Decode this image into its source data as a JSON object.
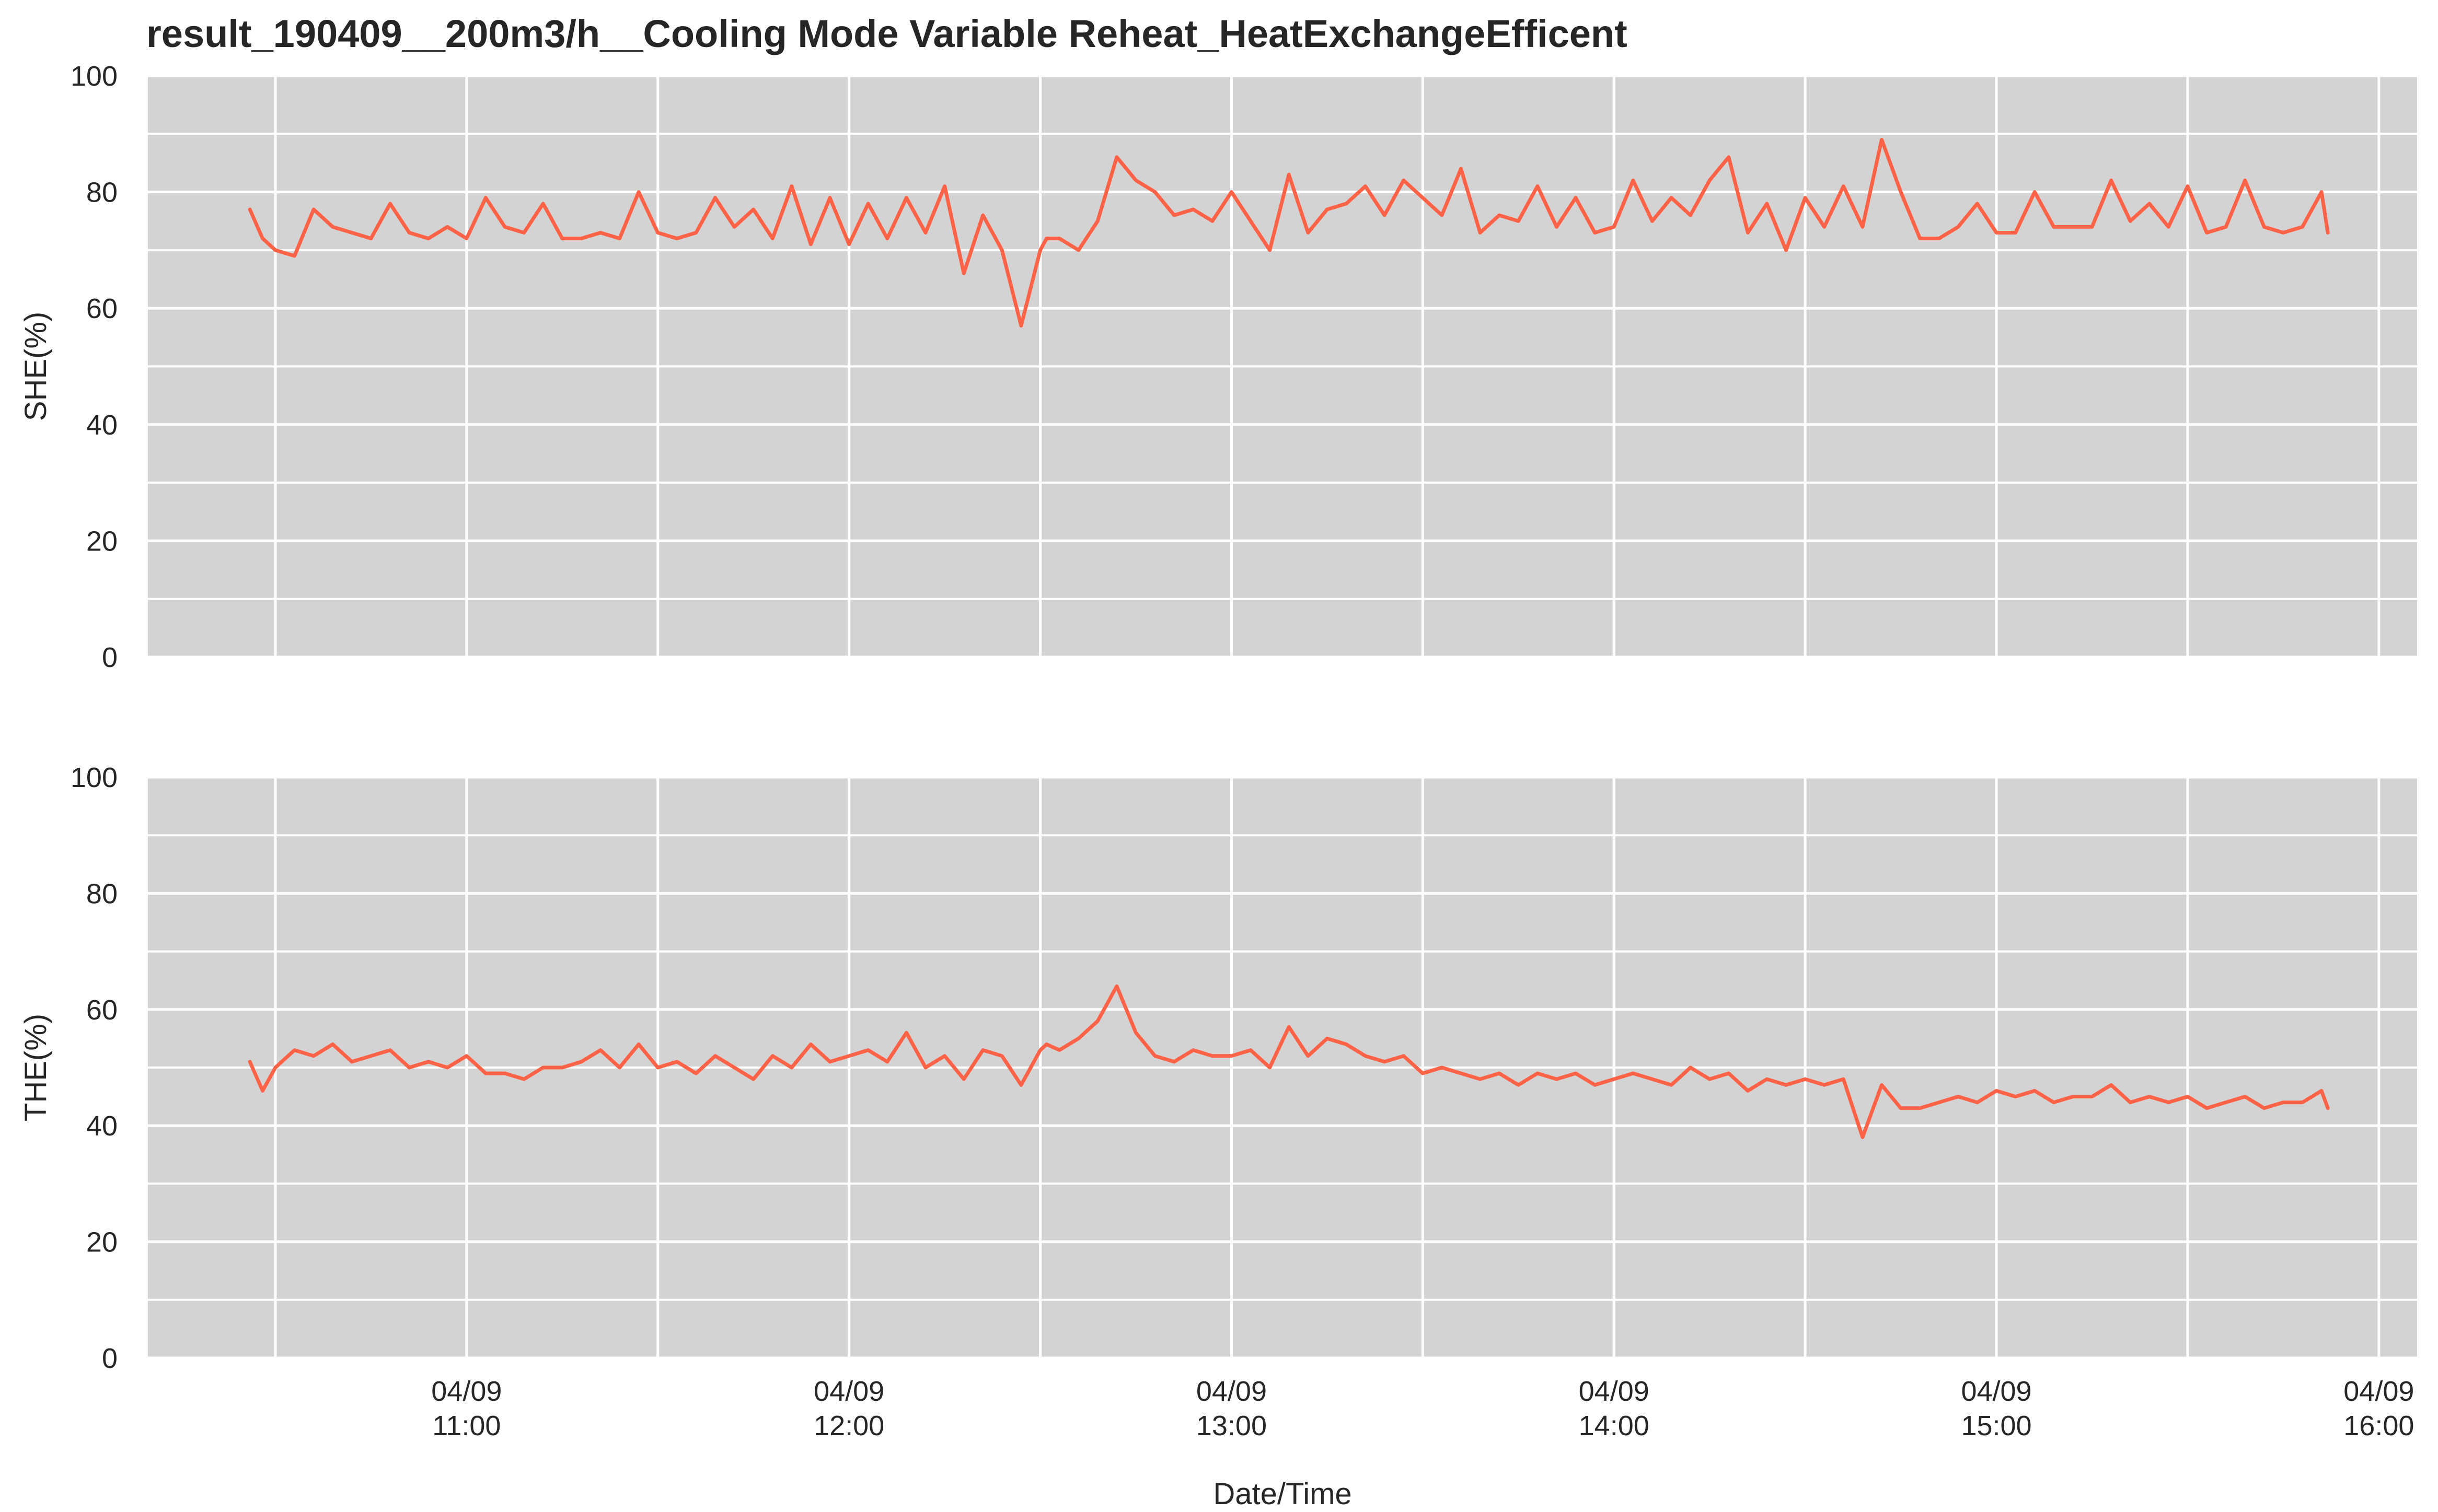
{
  "chart_data": {
    "type": "line",
    "title": "result_190409__200m3/h__Cooling Mode Variable Reheat_HeatExchangeEfficent",
    "xlabel": "Date/Time",
    "xlim": [
      "04/09 10:10",
      "04/09 16:06"
    ],
    "x_ticks": [
      {
        "t": "04/09 11:00",
        "line1": "04/09",
        "line2": "11:00"
      },
      {
        "t": "04/09 12:00",
        "line1": "04/09",
        "line2": "12:00"
      },
      {
        "t": "04/09 13:00",
        "line1": "04/09",
        "line2": "13:00"
      },
      {
        "t": "04/09 14:00",
        "line1": "04/09",
        "line2": "14:00"
      },
      {
        "t": "04/09 15:00",
        "line1": "04/09",
        "line2": "15:00"
      },
      {
        "t": "04/09 16:00",
        "line1": "04/09",
        "line2": "16:00"
      }
    ],
    "x_minor_ticks": [
      "04/09 10:30",
      "04/09 11:30",
      "04/09 12:30",
      "04/09 13:30",
      "04/09 14:30",
      "04/09 15:30"
    ],
    "grid": true,
    "line_color": "#ff6347",
    "background": "#d3d3d3",
    "panels": [
      {
        "ylabel": "SHE(%)",
        "ylim": [
          0,
          100
        ],
        "y_ticks": [
          0,
          20,
          40,
          60,
          80,
          100
        ],
        "series": [
          {
            "x": [
              "04/09 10:26",
              "04/09 10:28",
              "04/09 10:30",
              "04/09 10:33",
              "04/09 10:36",
              "04/09 10:39",
              "04/09 10:42",
              "04/09 10:45",
              "04/09 10:48",
              "04/09 10:51",
              "04/09 10:54",
              "04/09 10:57",
              "04/09 11:00",
              "04/09 11:03",
              "04/09 11:06",
              "04/09 11:09",
              "04/09 11:12",
              "04/09 11:15",
              "04/09 11:18",
              "04/09 11:21",
              "04/09 11:24",
              "04/09 11:27",
              "04/09 11:30",
              "04/09 11:33",
              "04/09 11:36",
              "04/09 11:39",
              "04/09 11:42",
              "04/09 11:45",
              "04/09 11:48",
              "04/09 11:51",
              "04/09 11:54",
              "04/09 11:57",
              "04/09 12:00",
              "04/09 12:03",
              "04/09 12:06",
              "04/09 12:09",
              "04/09 12:12",
              "04/09 12:15",
              "04/09 12:18",
              "04/09 12:21",
              "04/09 12:24",
              "04/09 12:27",
              "04/09 12:30",
              "04/09 12:31",
              "04/09 12:33",
              "04/09 12:36",
              "04/09 12:39",
              "04/09 12:42",
              "04/09 12:45",
              "04/09 12:48",
              "04/09 12:51",
              "04/09 12:54",
              "04/09 12:57",
              "04/09 13:00",
              "04/09 13:03",
              "04/09 13:06",
              "04/09 13:09",
              "04/09 13:12",
              "04/09 13:15",
              "04/09 13:18",
              "04/09 13:21",
              "04/09 13:24",
              "04/09 13:27",
              "04/09 13:30",
              "04/09 13:33",
              "04/09 13:36",
              "04/09 13:39",
              "04/09 13:42",
              "04/09 13:45",
              "04/09 13:48",
              "04/09 13:51",
              "04/09 13:54",
              "04/09 13:57",
              "04/09 14:00",
              "04/09 14:03",
              "04/09 14:06",
              "04/09 14:09",
              "04/09 14:12",
              "04/09 14:15",
              "04/09 14:18",
              "04/09 14:21",
              "04/09 14:24",
              "04/09 14:27",
              "04/09 14:30",
              "04/09 14:33",
              "04/09 14:36",
              "04/09 14:39",
              "04/09 14:42",
              "04/09 14:45",
              "04/09 14:48",
              "04/09 14:51",
              "04/09 14:54",
              "04/09 14:57",
              "04/09 15:00",
              "04/09 15:03",
              "04/09 15:06",
              "04/09 15:09",
              "04/09 15:12",
              "04/09 15:15",
              "04/09 15:18",
              "04/09 15:21",
              "04/09 15:24",
              "04/09 15:27",
              "04/09 15:30",
              "04/09 15:33",
              "04/09 15:36",
              "04/09 15:39",
              "04/09 15:42",
              "04/09 15:45",
              "04/09 15:48",
              "04/09 15:51",
              "04/09 15:52"
            ],
            "y": [
              77,
              72,
              70,
              69,
              77,
              74,
              73,
              72,
              78,
              73,
              72,
              74,
              72,
              79,
              74,
              73,
              78,
              72,
              72,
              73,
              72,
              80,
              73,
              72,
              73,
              79,
              74,
              77,
              72,
              81,
              71,
              79,
              71,
              78,
              72,
              79,
              73,
              81,
              66,
              76,
              70,
              57,
              70,
              72,
              72,
              70,
              75,
              86,
              82,
              80,
              76,
              77,
              75,
              80,
              75,
              70,
              83,
              73,
              77,
              78,
              81,
              76,
              82,
              79,
              76,
              84,
              73,
              76,
              75,
              81,
              74,
              79,
              73,
              74,
              82,
              75,
              79,
              76,
              82,
              86,
              73,
              78,
              70,
              79,
              74,
              81,
              74,
              89,
              80,
              72,
              72,
              74,
              78,
              73,
              73,
              80,
              74,
              74,
              74,
              82,
              75,
              78,
              74,
              81,
              73,
              74,
              82,
              74,
              73,
              74,
              80,
              73
            ]
          }
        ]
      },
      {
        "ylabel": "THE(%)",
        "ylim": [
          0,
          100
        ],
        "y_ticks": [
          0,
          20,
          40,
          60,
          80,
          100
        ],
        "series": [
          {
            "x": [
              "04/09 10:26",
              "04/09 10:28",
              "04/09 10:30",
              "04/09 10:33",
              "04/09 10:36",
              "04/09 10:39",
              "04/09 10:42",
              "04/09 10:45",
              "04/09 10:48",
              "04/09 10:51",
              "04/09 10:54",
              "04/09 10:57",
              "04/09 11:00",
              "04/09 11:03",
              "04/09 11:06",
              "04/09 11:09",
              "04/09 11:12",
              "04/09 11:15",
              "04/09 11:18",
              "04/09 11:21",
              "04/09 11:24",
              "04/09 11:27",
              "04/09 11:30",
              "04/09 11:33",
              "04/09 11:36",
              "04/09 11:39",
              "04/09 11:42",
              "04/09 11:45",
              "04/09 11:48",
              "04/09 11:51",
              "04/09 11:54",
              "04/09 11:57",
              "04/09 12:00",
              "04/09 12:03",
              "04/09 12:06",
              "04/09 12:09",
              "04/09 12:12",
              "04/09 12:15",
              "04/09 12:18",
              "04/09 12:21",
              "04/09 12:24",
              "04/09 12:27",
              "04/09 12:30",
              "04/09 12:31",
              "04/09 12:33",
              "04/09 12:36",
              "04/09 12:39",
              "04/09 12:42",
              "04/09 12:45",
              "04/09 12:48",
              "04/09 12:51",
              "04/09 12:54",
              "04/09 12:57",
              "04/09 13:00",
              "04/09 13:03",
              "04/09 13:06",
              "04/09 13:09",
              "04/09 13:12",
              "04/09 13:15",
              "04/09 13:18",
              "04/09 13:21",
              "04/09 13:24",
              "04/09 13:27",
              "04/09 13:30",
              "04/09 13:33",
              "04/09 13:36",
              "04/09 13:39",
              "04/09 13:42",
              "04/09 13:45",
              "04/09 13:48",
              "04/09 13:51",
              "04/09 13:54",
              "04/09 13:57",
              "04/09 14:00",
              "04/09 14:03",
              "04/09 14:06",
              "04/09 14:09",
              "04/09 14:12",
              "04/09 14:15",
              "04/09 14:18",
              "04/09 14:21",
              "04/09 14:24",
              "04/09 14:27",
              "04/09 14:30",
              "04/09 14:33",
              "04/09 14:36",
              "04/09 14:39",
              "04/09 14:42",
              "04/09 14:45",
              "04/09 14:48",
              "04/09 14:51",
              "04/09 14:54",
              "04/09 14:57",
              "04/09 15:00",
              "04/09 15:03",
              "04/09 15:06",
              "04/09 15:09",
              "04/09 15:12",
              "04/09 15:15",
              "04/09 15:18",
              "04/09 15:21",
              "04/09 15:24",
              "04/09 15:27",
              "04/09 15:30",
              "04/09 15:33",
              "04/09 15:36",
              "04/09 15:39",
              "04/09 15:42",
              "04/09 15:45",
              "04/09 15:48",
              "04/09 15:51",
              "04/09 15:52"
            ],
            "y": [
              51,
              46,
              50,
              53,
              52,
              54,
              51,
              52,
              53,
              50,
              51,
              50,
              52,
              49,
              49,
              48,
              50,
              50,
              51,
              53,
              50,
              54,
              50,
              51,
              49,
              52,
              50,
              48,
              52,
              50,
              54,
              51,
              52,
              53,
              51,
              56,
              50,
              52,
              48,
              53,
              52,
              47,
              53,
              54,
              53,
              55,
              58,
              64,
              56,
              52,
              51,
              53,
              52,
              52,
              53,
              50,
              57,
              52,
              55,
              54,
              52,
              51,
              52,
              49,
              50,
              49,
              48,
              49,
              47,
              49,
              48,
              49,
              47,
              48,
              49,
              48,
              47,
              50,
              48,
              49,
              46,
              48,
              47,
              48,
              47,
              48,
              38,
              47,
              43,
              43,
              44,
              45,
              44,
              46,
              45,
              46,
              44,
              45,
              45,
              47,
              44,
              45,
              44,
              45,
              43,
              44,
              45,
              43,
              44,
              44,
              46,
              43
            ]
          }
        ]
      }
    ]
  }
}
